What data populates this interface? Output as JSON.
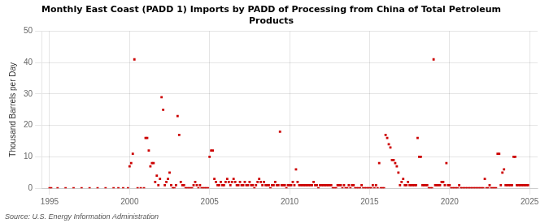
{
  "chart_data": {
    "type": "scatter",
    "title": "Monthly East Coast (PADD 1) Imports by PADD of Processing from China of Total Petroleum\nProducts",
    "ylabel": "Thousand Barrels per Day",
    "annotations": [
      "Source: U.S. Energy Information Administration"
    ],
    "color": "#cc0000",
    "marker": "square",
    "grid": true,
    "xlim": [
      1994.5,
      2025.5
    ],
    "xticks": [
      1995,
      2000,
      2005,
      2010,
      2015,
      2020,
      2025
    ],
    "ylim": [
      0,
      50
    ],
    "yticks": [
      0,
      10,
      20,
      30,
      40,
      50
    ],
    "x": [
      1995.0,
      1995.1,
      1995.5,
      1996.0,
      1996.5,
      1997.0,
      1997.5,
      1998.0,
      1998.5,
      1999.0,
      1999.3,
      1999.6,
      1999.9,
      2000.0,
      2000.1,
      2000.2,
      2000.3,
      2000.5,
      2000.7,
      2000.9,
      2001.0,
      2001.1,
      2001.2,
      2001.3,
      2001.4,
      2001.5,
      2001.6,
      2001.7,
      2001.8,
      2001.9,
      2002.0,
      2002.1,
      2002.2,
      2002.3,
      2002.4,
      2002.5,
      2002.6,
      2002.7,
      2002.8,
      2002.9,
      2003.0,
      2003.1,
      2003.2,
      2003.3,
      2003.4,
      2003.5,
      2003.6,
      2003.7,
      2003.8,
      2003.9,
      2004.0,
      2004.1,
      2004.2,
      2004.3,
      2004.4,
      2004.5,
      2004.6,
      2004.7,
      2004.8,
      2004.9,
      2005.0,
      2005.1,
      2005.2,
      2005.3,
      2005.4,
      2005.5,
      2005.6,
      2005.7,
      2005.8,
      2005.9,
      2006.0,
      2006.1,
      2006.2,
      2006.3,
      2006.4,
      2006.5,
      2006.6,
      2006.7,
      2006.8,
      2006.9,
      2007.0,
      2007.1,
      2007.2,
      2007.3,
      2007.4,
      2007.5,
      2007.6,
      2007.7,
      2007.8,
      2007.9,
      2008.0,
      2008.1,
      2008.2,
      2008.3,
      2008.4,
      2008.5,
      2008.6,
      2008.7,
      2008.8,
      2008.9,
      2009.0,
      2009.1,
      2009.2,
      2009.3,
      2009.4,
      2009.5,
      2009.6,
      2009.7,
      2009.8,
      2009.9,
      2010.0,
      2010.1,
      2010.2,
      2010.3,
      2010.4,
      2010.5,
      2010.6,
      2010.7,
      2010.8,
      2010.9,
      2011.0,
      2011.1,
      2011.2,
      2011.3,
      2011.4,
      2011.5,
      2011.6,
      2011.7,
      2011.8,
      2011.9,
      2012.0,
      2012.1,
      2012.2,
      2012.3,
      2012.4,
      2012.5,
      2012.6,
      2012.7,
      2012.8,
      2012.9,
      2013.0,
      2013.1,
      2013.2,
      2013.3,
      2013.4,
      2013.5,
      2013.6,
      2013.7,
      2013.8,
      2013.9,
      2014.0,
      2014.1,
      2014.2,
      2014.3,
      2014.4,
      2014.5,
      2014.6,
      2014.7,
      2014.8,
      2014.9,
      2015.0,
      2015.1,
      2015.2,
      2015.3,
      2015.4,
      2015.5,
      2015.6,
      2015.7,
      2015.8,
      2015.9,
      2016.0,
      2016.1,
      2016.2,
      2016.3,
      2016.4,
      2016.5,
      2016.6,
      2016.7,
      2016.8,
      2016.9,
      2017.0,
      2017.1,
      2017.2,
      2017.3,
      2017.4,
      2017.5,
      2017.6,
      2017.7,
      2017.8,
      2017.9,
      2018.0,
      2018.1,
      2018.2,
      2018.3,
      2018.4,
      2018.5,
      2018.6,
      2018.7,
      2018.8,
      2018.9,
      2019.0,
      2019.1,
      2019.2,
      2019.3,
      2019.4,
      2019.5,
      2019.6,
      2019.7,
      2019.8,
      2019.9,
      2020.0,
      2020.1,
      2020.2,
      2020.3,
      2020.4,
      2020.5,
      2020.6,
      2020.7,
      2020.8,
      2020.9,
      2021.0,
      2021.1,
      2021.2,
      2021.3,
      2021.4,
      2021.5,
      2021.6,
      2021.7,
      2021.8,
      2021.9,
      2022.0,
      2022.1,
      2022.2,
      2022.3,
      2022.4,
      2022.5,
      2022.6,
      2022.7,
      2022.8,
      2022.9,
      2023.0,
      2023.1,
      2023.2,
      2023.3,
      2023.4,
      2023.5,
      2023.6,
      2023.7,
      2023.8,
      2023.9,
      2024.0,
      2024.1,
      2024.2,
      2024.3,
      2024.4,
      2024.5,
      2024.6,
      2024.7,
      2024.8,
      2024.9
    ],
    "values": [
      0,
      0,
      0,
      0,
      0,
      0,
      0,
      0,
      0,
      0,
      0,
      0,
      0,
      7,
      8,
      11,
      41,
      0,
      0,
      0,
      16,
      16,
      12,
      7,
      8,
      8,
      2,
      4,
      1,
      3,
      29,
      25,
      1,
      2,
      3,
      5,
      1,
      0,
      0,
      1,
      23,
      17,
      2,
      1,
      1,
      0,
      0,
      0,
      0,
      0,
      1,
      2,
      1,
      0,
      1,
      0,
      0,
      0,
      0,
      0,
      10,
      12,
      12,
      3,
      2,
      1,
      1,
      2,
      1,
      1,
      2,
      3,
      2,
      1,
      2,
      3,
      2,
      1,
      1,
      2,
      1,
      1,
      2,
      1,
      1,
      2,
      1,
      1,
      0,
      1,
      2,
      3,
      2,
      1,
      2,
      1,
      1,
      1,
      0,
      1,
      1,
      2,
      1,
      1,
      18,
      1,
      1,
      1,
      0,
      1,
      1,
      1,
      2,
      1,
      6,
      2,
      1,
      1,
      1,
      1,
      1,
      1,
      1,
      1,
      1,
      2,
      1,
      1,
      0,
      1,
      1,
      1,
      1,
      1,
      1,
      1,
      1,
      0,
      0,
      0,
      1,
      1,
      1,
      0,
      1,
      0,
      0,
      1,
      0,
      1,
      1,
      0,
      0,
      0,
      0,
      1,
      0,
      0,
      0,
      0,
      0,
      0,
      1,
      0,
      1,
      0,
      8,
      0,
      0,
      0,
      17,
      16,
      14,
      13,
      9,
      9,
      8,
      7,
      5,
      1,
      2,
      3,
      1,
      1,
      2,
      1,
      1,
      1,
      1,
      1,
      16,
      10,
      10,
      1,
      1,
      1,
      1,
      0,
      0,
      0,
      41,
      1,
      1,
      1,
      1,
      2,
      2,
      1,
      8,
      1,
      1,
      0,
      0,
      0,
      0,
      0,
      1,
      0,
      0,
      0,
      0,
      0,
      0,
      0,
      0,
      0,
      0,
      0,
      0,
      0,
      0,
      0,
      3,
      0,
      0,
      1,
      0,
      0,
      0,
      0,
      11,
      11,
      1,
      5,
      6,
      1,
      1,
      1,
      1,
      1,
      10,
      10,
      1,
      1,
      1,
      1,
      1,
      1,
      1,
      1
    ]
  }
}
